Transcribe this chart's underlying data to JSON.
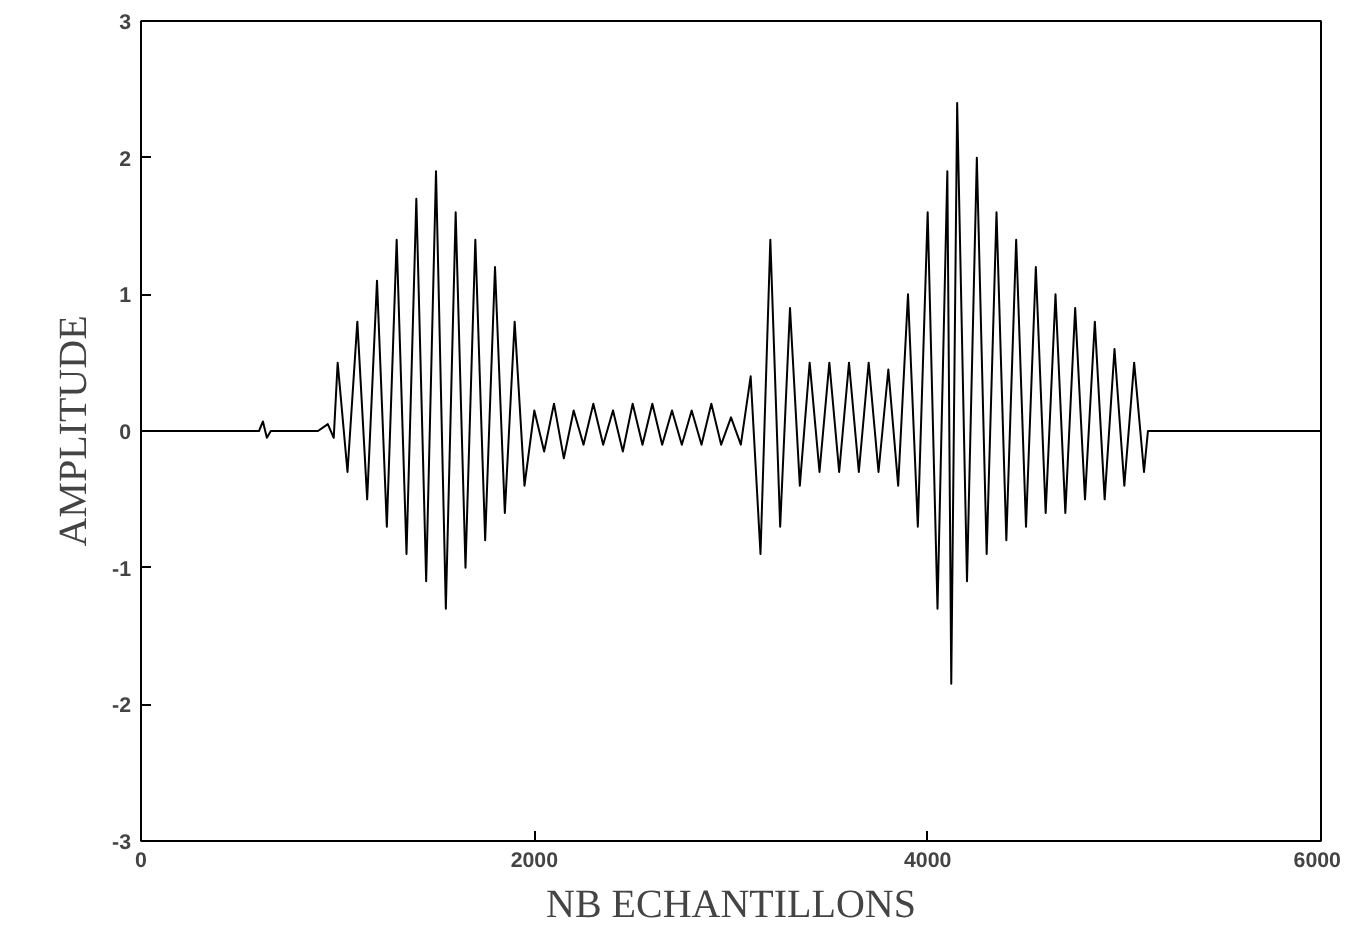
{
  "chart_data": {
    "type": "line",
    "xlabel": "NB ECHANTILLONS",
    "ylabel": "AMPLITUDE",
    "xlim": [
      0,
      6000
    ],
    "ylim": [
      -3,
      3
    ],
    "xticks": [
      0,
      2000,
      4000,
      6000
    ],
    "yticks": [
      -3,
      -2,
      -1,
      0,
      1,
      2,
      3
    ],
    "grid": false,
    "marker": "none",
    "line_style": "solid",
    "series": [
      {
        "color": "#000000",
        "x": [
          0,
          600,
          620,
          640,
          660,
          900,
          950,
          980,
          1000,
          1050,
          1100,
          1150,
          1200,
          1250,
          1300,
          1350,
          1400,
          1450,
          1500,
          1550,
          1600,
          1650,
          1700,
          1750,
          1800,
          1850,
          1900,
          1950,
          2000,
          2050,
          2100,
          2150,
          2200,
          2250,
          2300,
          2350,
          2400,
          2450,
          2500,
          2550,
          2600,
          2650,
          2700,
          2750,
          2800,
          2850,
          2900,
          2950,
          3000,
          3050,
          3100,
          3150,
          3200,
          3250,
          3300,
          3350,
          3400,
          3450,
          3500,
          3550,
          3600,
          3650,
          3700,
          3750,
          3800,
          3850,
          3900,
          3950,
          4000,
          4050,
          4100,
          4120,
          4150,
          4200,
          4250,
          4300,
          4350,
          4400,
          4450,
          4500,
          4550,
          4600,
          4650,
          4700,
          4750,
          4800,
          4850,
          4900,
          4950,
          5000,
          5050,
          5100,
          5120,
          6000
        ],
        "values": [
          0,
          0,
          0.07,
          -0.05,
          0,
          0,
          0.05,
          -0.05,
          0.5,
          -0.3,
          0.8,
          -0.5,
          1.1,
          -0.7,
          1.4,
          -0.9,
          1.7,
          -1.1,
          1.9,
          -1.3,
          1.6,
          -1.0,
          1.4,
          -0.8,
          1.2,
          -0.6,
          0.8,
          -0.4,
          0.15,
          -0.15,
          0.2,
          -0.2,
          0.15,
          -0.1,
          0.2,
          -0.1,
          0.15,
          -0.15,
          0.2,
          -0.1,
          0.2,
          -0.1,
          0.15,
          -0.1,
          0.15,
          -0.1,
          0.2,
          -0.1,
          0.1,
          -0.1,
          0.4,
          -0.9,
          1.4,
          -0.7,
          0.9,
          -0.4,
          0.5,
          -0.3,
          0.5,
          -0.3,
          0.5,
          -0.3,
          0.5,
          -0.3,
          0.45,
          -0.4,
          1.0,
          -0.7,
          1.6,
          -1.3,
          1.9,
          -1.85,
          2.4,
          -1.1,
          2.0,
          -0.9,
          1.6,
          -0.8,
          1.4,
          -0.7,
          1.2,
          -0.6,
          1.0,
          -0.6,
          0.9,
          -0.5,
          0.8,
          -0.5,
          0.6,
          -0.4,
          0.5,
          -0.3,
          0,
          0
        ]
      }
    ]
  }
}
